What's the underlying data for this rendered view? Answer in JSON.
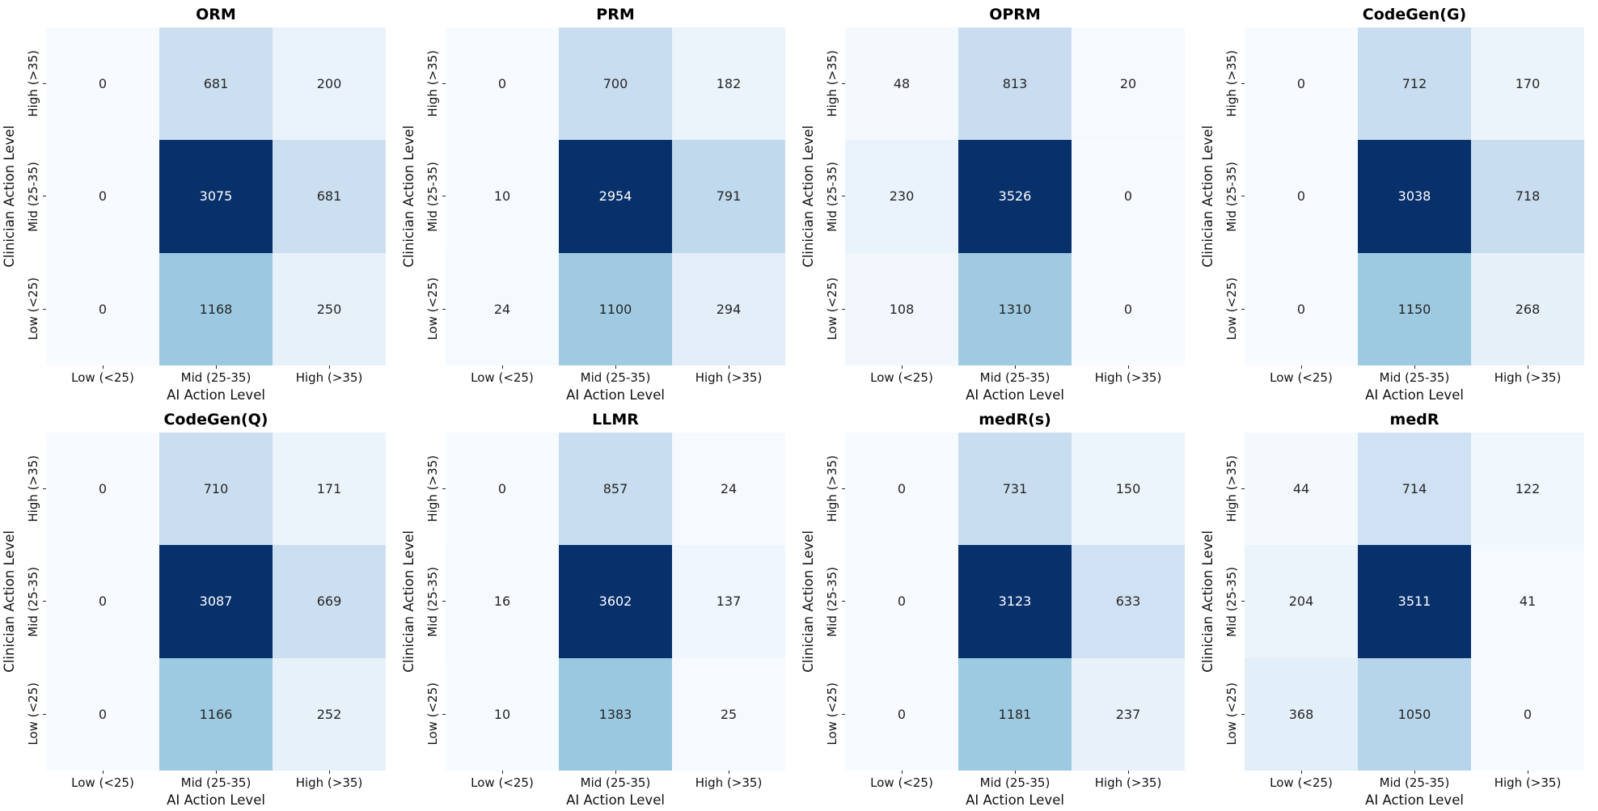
{
  "figure": {
    "background": "#ffffff",
    "annotation_text_dark": "#262626",
    "annotation_text_light": "#ffffff",
    "tick_text_color": "#111111",
    "title_text_color": "#000000",
    "colormap": {
      "name": "Blues",
      "stops": [
        [
          0.0,
          "#f7fbff"
        ],
        [
          0.125,
          "#deebf7"
        ],
        [
          0.25,
          "#c6dbef"
        ],
        [
          0.375,
          "#9ecae1"
        ],
        [
          0.5,
          "#6baed6"
        ],
        [
          0.625,
          "#4292c6"
        ],
        [
          0.75,
          "#2171b5"
        ],
        [
          0.875,
          "#08519c"
        ],
        [
          1.0,
          "#08306b"
        ]
      ]
    }
  },
  "chart_data": [
    {
      "type": "heatmap",
      "title": "ORM",
      "xlabel": "AI Action Level",
      "ylabel": "Clinician Action Level",
      "rows": [
        "High (>35)",
        "Mid (25-35)",
        "Low (<25)"
      ],
      "cols": [
        "Low (<25)",
        "Mid (25-35)",
        "High (>35)"
      ],
      "values": [
        [
          0,
          681,
          200
        ],
        [
          0,
          3075,
          681
        ],
        [
          0,
          1168,
          250
        ]
      ],
      "vmin": 0,
      "vmax": 3075
    },
    {
      "type": "heatmap",
      "title": "PRM",
      "xlabel": "AI Action Level",
      "ylabel": "Clinician Action Level",
      "rows": [
        "High (>35)",
        "Mid (25-35)",
        "Low (<25)"
      ],
      "cols": [
        "Low (<25)",
        "Mid (25-35)",
        "High (>35)"
      ],
      "values": [
        [
          0,
          700,
          182
        ],
        [
          10,
          2954,
          791
        ],
        [
          24,
          1100,
          294
        ]
      ],
      "vmin": 0,
      "vmax": 2954
    },
    {
      "type": "heatmap",
      "title": "OPRM",
      "xlabel": "AI Action Level",
      "ylabel": "Clinician Action Level",
      "rows": [
        "High (>35)",
        "Mid (25-35)",
        "Low (<25)"
      ],
      "cols": [
        "Low (<25)",
        "Mid (25-35)",
        "High (>35)"
      ],
      "values": [
        [
          48,
          813,
          20
        ],
        [
          230,
          3526,
          0
        ],
        [
          108,
          1310,
          0
        ]
      ],
      "vmin": 0,
      "vmax": 3526
    },
    {
      "type": "heatmap",
      "title": "CodeGen(G)",
      "xlabel": "AI Action Level",
      "ylabel": "Clinician Action Level",
      "rows": [
        "High (>35)",
        "Mid (25-35)",
        "Low (<25)"
      ],
      "cols": [
        "Low (<25)",
        "Mid (25-35)",
        "High (>35)"
      ],
      "values": [
        [
          0,
          712,
          170
        ],
        [
          0,
          3038,
          718
        ],
        [
          0,
          1150,
          268
        ]
      ],
      "vmin": 0,
      "vmax": 3038
    },
    {
      "type": "heatmap",
      "title": "CodeGen(Q)",
      "xlabel": "AI Action Level",
      "ylabel": "Clinician Action Level",
      "rows": [
        "High (>35)",
        "Mid (25-35)",
        "Low (<25)"
      ],
      "cols": [
        "Low (<25)",
        "Mid (25-35)",
        "High (>35)"
      ],
      "values": [
        [
          0,
          710,
          171
        ],
        [
          0,
          3087,
          669
        ],
        [
          0,
          1166,
          252
        ]
      ],
      "vmin": 0,
      "vmax": 3087
    },
    {
      "type": "heatmap",
      "title": "LLMR",
      "xlabel": "AI Action Level",
      "ylabel": "Clinician Action Level",
      "rows": [
        "High (>35)",
        "Mid (25-35)",
        "Low (<25)"
      ],
      "cols": [
        "Low (<25)",
        "Mid (25-35)",
        "High (>35)"
      ],
      "values": [
        [
          0,
          857,
          24
        ],
        [
          16,
          3602,
          137
        ],
        [
          10,
          1383,
          25
        ]
      ],
      "vmin": 0,
      "vmax": 3602
    },
    {
      "type": "heatmap",
      "title": "medR(s)",
      "xlabel": "AI Action Level",
      "ylabel": "Clinician Action Level",
      "rows": [
        "High (>35)",
        "Mid (25-35)",
        "Low (<25)"
      ],
      "cols": [
        "Low (<25)",
        "Mid (25-35)",
        "High (>35)"
      ],
      "values": [
        [
          0,
          731,
          150
        ],
        [
          0,
          3123,
          633
        ],
        [
          0,
          1181,
          237
        ]
      ],
      "vmin": 0,
      "vmax": 3123
    },
    {
      "type": "heatmap",
      "title": "medR",
      "xlabel": "AI Action Level",
      "ylabel": "Clinician Action Level",
      "rows": [
        "High (>35)",
        "Mid (25-35)",
        "Low (<25)"
      ],
      "cols": [
        "Low (<25)",
        "Mid (25-35)",
        "High (>35)"
      ],
      "values": [
        [
          44,
          714,
          122
        ],
        [
          204,
          3511,
          41
        ],
        [
          368,
          1050,
          0
        ]
      ],
      "vmin": 0,
      "vmax": 3511
    }
  ]
}
